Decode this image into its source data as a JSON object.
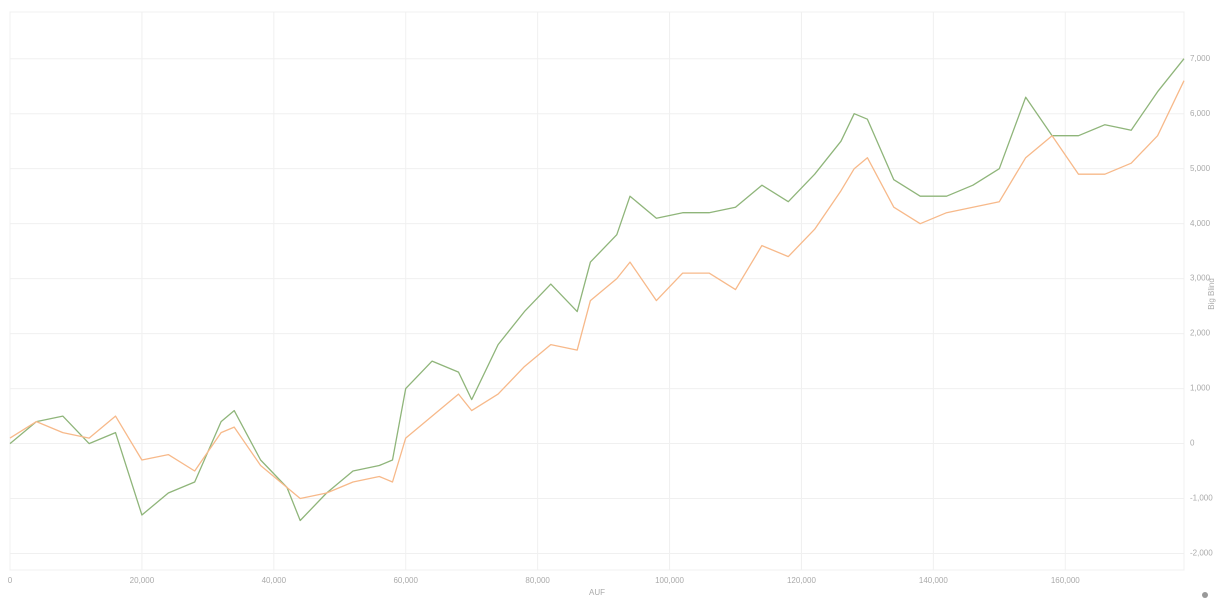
{
  "chart_data": {
    "type": "line",
    "x_label": "AUF",
    "y_label": "Big Blind",
    "x": [
      0,
      4000,
      8000,
      12000,
      16000,
      20000,
      24000,
      28000,
      32000,
      34000,
      38000,
      42000,
      44000,
      48000,
      52000,
      56000,
      58000,
      60000,
      64000,
      68000,
      70000,
      74000,
      78000,
      82000,
      86000,
      88000,
      92000,
      94000,
      98000,
      102000,
      106000,
      110000,
      114000,
      118000,
      122000,
      126000,
      128000,
      130000,
      134000,
      138000,
      142000,
      146000,
      150000,
      154000,
      158000,
      162000,
      166000,
      170000,
      174000,
      178000
    ],
    "series": [
      {
        "color": "#8fb57a",
        "values": [
          0,
          400,
          500,
          0,
          200,
          -1300,
          -900,
          -700,
          400,
          600,
          -300,
          -800,
          -1400,
          -900,
          -500,
          -400,
          -300,
          1000,
          1500,
          1300,
          800,
          1800,
          2400,
          2900,
          2400,
          3300,
          3800,
          4500,
          4100,
          4200,
          4200,
          4300,
          4700,
          4400,
          4900,
          5500,
          6000,
          5900,
          4800,
          4500,
          4500,
          4700,
          5000,
          6300,
          5600,
          5600,
          5800,
          5700,
          6400,
          7000
        ]
      },
      {
        "color": "#f7b98a",
        "values": [
          100,
          400,
          200,
          100,
          500,
          -300,
          -200,
          -500,
          200,
          300,
          -400,
          -800,
          -1000,
          -900,
          -700,
          -600,
          -700,
          100,
          500,
          900,
          600,
          900,
          1400,
          1800,
          1700,
          2600,
          3000,
          3300,
          2600,
          3100,
          3100,
          2800,
          3600,
          3400,
          3900,
          4600,
          5000,
          5200,
          4300,
          4000,
          4200,
          4300,
          4400,
          5200,
          5600,
          4900,
          4900,
          5100,
          5600,
          6600
        ]
      }
    ],
    "xlim": [
      0,
      178000
    ],
    "ylim": [
      -2300,
      7850
    ],
    "xticks": [
      0,
      {
        "value": 20000,
        "label": "20,000"
      },
      {
        "value": 40000,
        "label": "40,000"
      },
      {
        "value": 60000,
        "label": "60,000"
      },
      {
        "value": 80000,
        "label": "80,000"
      },
      {
        "value": 100000,
        "label": "100,000"
      },
      {
        "value": 120000,
        "label": "120,000"
      },
      {
        "value": 140000,
        "label": "140,000"
      },
      {
        "value": 160000,
        "label": "160,000"
      }
    ],
    "yticks": [
      {
        "value": -2000,
        "label": "-2,000"
      },
      {
        "value": -1000,
        "label": "-1,000"
      },
      0,
      {
        "value": 1000,
        "label": "1,000"
      },
      {
        "value": 2000,
        "label": "2,000"
      },
      {
        "value": 3000,
        "label": "3,000"
      },
      {
        "value": 4000,
        "label": "4,000"
      },
      {
        "value": 5000,
        "label": "5,000"
      },
      {
        "value": 6000,
        "label": "6,000"
      },
      {
        "value": 7000,
        "label": "7,000"
      }
    ],
    "grid": true
  }
}
